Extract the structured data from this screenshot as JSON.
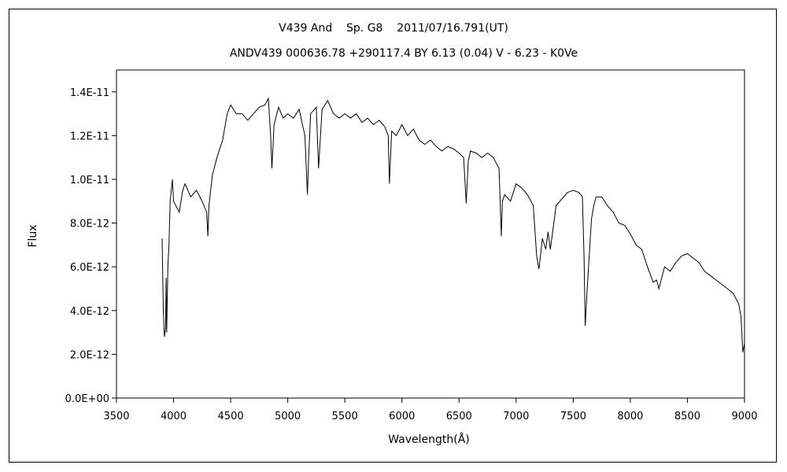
{
  "chart_data": {
    "type": "line",
    "title": "V439 And    Sp. G8    2011/07/16.791(UT)",
    "subtitle": "ANDV439 000636.78 +290117.4 BY 6.13 (0.04) V - 6.23 - K0Ve",
    "xlabel": "Wavelength(Å)",
    "ylabel": "Flux",
    "xlim": [
      3500,
      9000
    ],
    "ylim": [
      0,
      1.5e-11
    ],
    "grid": false,
    "legend": "none",
    "line_color": "#000000",
    "x_ticks": [
      3500,
      4000,
      4500,
      5000,
      5500,
      6000,
      6500,
      7000,
      7500,
      8000,
      8500,
      9000
    ],
    "x_tick_labels": [
      "3500",
      "4000",
      "4500",
      "5000",
      "5500",
      "6000",
      "6500",
      "7000",
      "7500",
      "8000",
      "8500",
      "9000"
    ],
    "y_ticks": [
      0,
      2e-12,
      4e-12,
      6e-12,
      8e-12,
      1e-11,
      1.2e-11,
      1.4e-11
    ],
    "y_tick_labels": [
      "0.0E+00",
      "2.0E-12",
      "4.0E-12",
      "6.0E-12",
      "8.0E-12",
      "1.0E-11",
      "1.2E-11",
      "1.4E-11"
    ],
    "series": [
      {
        "x": [
          3900,
          3910,
          3920,
          3930,
          3935,
          3940,
          3950,
          3960,
          3970,
          3990,
          4000,
          4020,
          4050,
          4080,
          4100,
          4150,
          4200,
          4250,
          4290,
          4300,
          4310,
          4340,
          4380,
          4430,
          4470,
          4500,
          4550,
          4600,
          4650,
          4700,
          4750,
          4800,
          4830,
          4850,
          4861,
          4880,
          4920,
          4960,
          5000,
          5050,
          5100,
          5150,
          5172,
          5183,
          5200,
          5250,
          5270,
          5300,
          5350,
          5400,
          5450,
          5500,
          5550,
          5600,
          5650,
          5700,
          5750,
          5800,
          5850,
          5880,
          5890,
          5896,
          5910,
          5950,
          6000,
          6050,
          6100,
          6150,
          6200,
          6250,
          6300,
          6350,
          6400,
          6450,
          6500,
          6540,
          6563,
          6580,
          6600,
          6650,
          6700,
          6750,
          6800,
          6850,
          6870,
          6880,
          6900,
          6950,
          7000,
          7050,
          7100,
          7150,
          7180,
          7200,
          7230,
          7260,
          7280,
          7300,
          7350,
          7400,
          7450,
          7500,
          7550,
          7580,
          7595,
          7605,
          7620,
          7640,
          7660,
          7680,
          7700,
          7750,
          7800,
          7850,
          7900,
          7950,
          8000,
          8050,
          8100,
          8150,
          8200,
          8230,
          8250,
          8300,
          8350,
          8400,
          8450,
          8500,
          8550,
          8600,
          8650,
          8700,
          8750,
          8800,
          8850,
          8900,
          8950,
          8970,
          8985,
          9000
        ],
        "y": [
          7.3e-12,
          4e-12,
          2.8e-12,
          3.2e-12,
          5.5e-12,
          3e-12,
          6e-12,
          7e-12,
          9e-12,
          1e-11,
          9e-12,
          8.8e-12,
          8.5e-12,
          9.5e-12,
          9.8e-12,
          9.2e-12,
          9.5e-12,
          9e-12,
          8.5e-12,
          7.4e-12,
          8.8e-12,
          1.02e-11,
          1.1e-11,
          1.18e-11,
          1.3e-11,
          1.34e-11,
          1.3e-11,
          1.3e-11,
          1.27e-11,
          1.3e-11,
          1.33e-11,
          1.34e-11,
          1.37e-11,
          1.2e-11,
          1.05e-11,
          1.25e-11,
          1.33e-11,
          1.28e-11,
          1.3e-11,
          1.28e-11,
          1.32e-11,
          1.2e-11,
          9.3e-12,
          1.1e-11,
          1.3e-11,
          1.33e-11,
          1.05e-11,
          1.32e-11,
          1.36e-11,
          1.3e-11,
          1.28e-11,
          1.3e-11,
          1.28e-11,
          1.3e-11,
          1.26e-11,
          1.28e-11,
          1.25e-11,
          1.27e-11,
          1.24e-11,
          1.2e-11,
          9.8e-12,
          1.05e-11,
          1.22e-11,
          1.2e-11,
          1.25e-11,
          1.2e-11,
          1.23e-11,
          1.18e-11,
          1.16e-11,
          1.18e-11,
          1.15e-11,
          1.13e-11,
          1.15e-11,
          1.14e-11,
          1.12e-11,
          1.1e-11,
          8.9e-12,
          1.08e-11,
          1.13e-11,
          1.12e-11,
          1.1e-11,
          1.12e-11,
          1.1e-11,
          1.05e-11,
          7.4e-12,
          9e-12,
          9.3e-12,
          9e-12,
          9.8e-12,
          9.6e-12,
          9.3e-12,
          8.8e-12,
          6.5e-12,
          5.9e-12,
          7.3e-12,
          6.8e-12,
          7.6e-12,
          6.8e-12,
          8.8e-12,
          9.1e-12,
          9.4e-12,
          9.5e-12,
          9.4e-12,
          9.2e-12,
          6.5e-12,
          3.3e-12,
          4.8e-12,
          6.5e-12,
          8.2e-12,
          8.8e-12,
          9.2e-12,
          9.2e-12,
          8.8e-12,
          8.5e-12,
          8e-12,
          7.9e-12,
          7.5e-12,
          7e-12,
          6.8e-12,
          6e-12,
          5.3e-12,
          5.4e-12,
          5e-12,
          6e-12,
          5.8e-12,
          6.2e-12,
          6.5e-12,
          6.6e-12,
          6.4e-12,
          6.2e-12,
          5.8e-12,
          5.6e-12,
          5.4e-12,
          5.2e-12,
          5e-12,
          4.8e-12,
          4.3e-12,
          3.7e-12,
          2.1e-12,
          2.5e-12
        ]
      }
    ]
  }
}
